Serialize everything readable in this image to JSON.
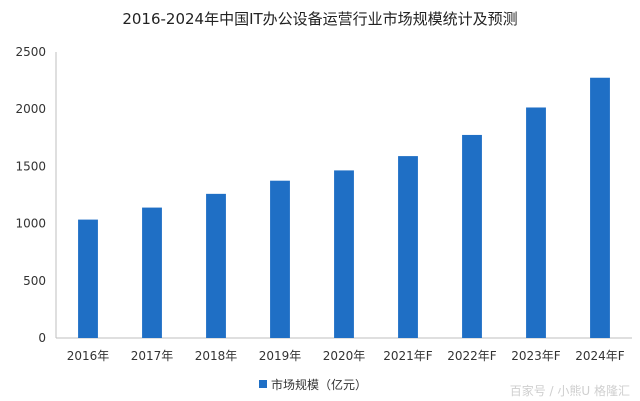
{
  "chart_data": {
    "type": "bar",
    "title": "2016-2024年中国IT办公设备运营行业市场规模统计及预测",
    "categories": [
      "2016年",
      "2017年",
      "2018年",
      "2019年",
      "2020年",
      "2021年F",
      "2022年F",
      "2023年F",
      "2024年F"
    ],
    "series": [
      {
        "name": "市场规模（亿元）",
        "values": [
          1035,
          1140,
          1260,
          1375,
          1465,
          1590,
          1775,
          2015,
          2275
        ]
      }
    ],
    "y_ticks": [
      "0",
      "500",
      "1000",
      "1500",
      "2000",
      "2500"
    ],
    "ylim": [
      0,
      2500
    ],
    "grid": false,
    "legend": "bottom",
    "bar_color": "#1f6fc5"
  },
  "watermark": "百家号 / 小熊U  格隆汇"
}
